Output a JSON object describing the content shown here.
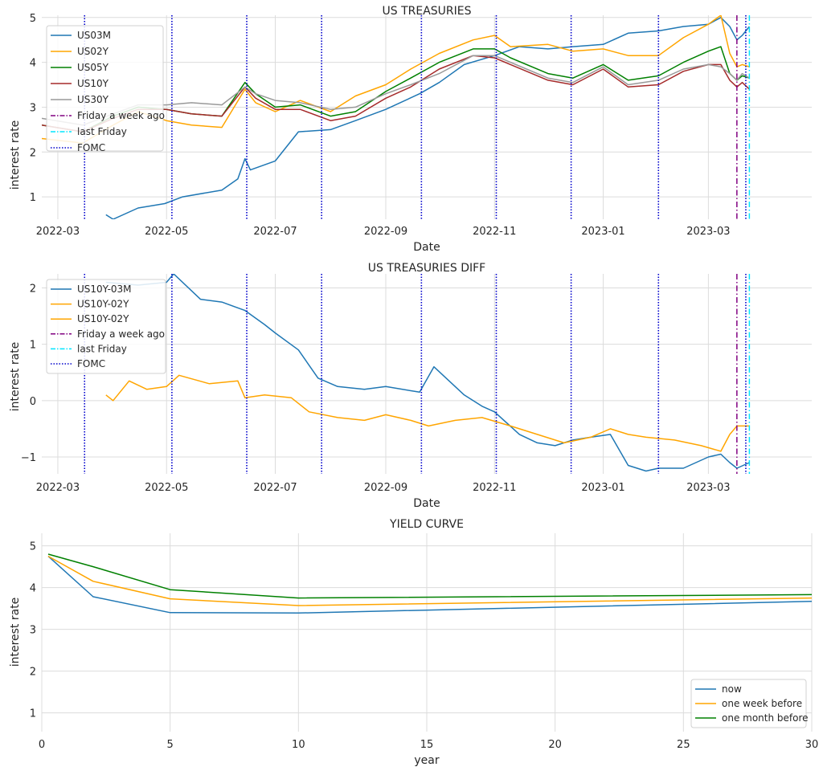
{
  "chart_data": [
    {
      "type": "line",
      "title": "US TREASURIES",
      "xlabel": "Date",
      "ylabel": "interest rate",
      "x_ticks": [
        "2022-03",
        "2022-05",
        "2022-07",
        "2022-09",
        "2022-11",
        "2023-01",
        "2023-03"
      ],
      "y_ticks": [
        "1",
        "2",
        "3",
        "4",
        "5"
      ],
      "x_range": [
        "2022-02-20",
        "2023-04-28"
      ],
      "ylim": [
        0.5,
        5.05
      ],
      "grid": true,
      "legend_position": "upper-left",
      "legend": [
        "US03M",
        "US02Y",
        "US05Y",
        "US10Y",
        "US30Y",
        "Friday a week ago",
        "last Friday",
        "FOMC"
      ],
      "vlines": {
        "FOMC": [
          "2022-03-16",
          "2022-05-04",
          "2022-06-15",
          "2022-07-27",
          "2022-09-21",
          "2022-11-02",
          "2022-12-14",
          "2023-02-01",
          "2023-03-22"
        ],
        "Friday a week ago": "2023-03-17",
        "last Friday": "2023-03-24"
      },
      "series": [
        {
          "name": "US03M",
          "color": "#1f77b4",
          "x": [
            "2022-03-28",
            "2022-04-01",
            "2022-04-15",
            "2022-04-30",
            "2022-05-10",
            "2022-06-01",
            "2022-06-10",
            "2022-06-14",
            "2022-06-17",
            "2022-07-01",
            "2022-07-14",
            "2022-08-01",
            "2022-08-15",
            "2022-09-01",
            "2022-09-20",
            "2022-10-01",
            "2022-10-15",
            "2022-11-01",
            "2022-11-15",
            "2022-12-01",
            "2022-12-15",
            "2023-01-01",
            "2023-01-15",
            "2023-02-01",
            "2023-02-15",
            "2023-03-01",
            "2023-03-08",
            "2023-03-13",
            "2023-03-17",
            "2023-03-20",
            "2023-03-24"
          ],
          "y": [
            0.6,
            0.5,
            0.75,
            0.85,
            1.0,
            1.15,
            1.4,
            1.85,
            1.6,
            1.8,
            2.45,
            2.5,
            2.7,
            2.95,
            3.3,
            3.55,
            3.95,
            4.15,
            4.35,
            4.3,
            4.35,
            4.4,
            4.65,
            4.7,
            4.8,
            4.85,
            5.0,
            4.8,
            4.5,
            4.6,
            4.8
          ]
        },
        {
          "name": "US02Y",
          "color": "#ffa500",
          "x": [
            "2022-02-20",
            "2022-03-15",
            "2022-04-01",
            "2022-04-15",
            "2022-05-01",
            "2022-05-15",
            "2022-06-01",
            "2022-06-14",
            "2022-06-20",
            "2022-07-01",
            "2022-07-15",
            "2022-08-01",
            "2022-08-15",
            "2022-09-01",
            "2022-09-15",
            "2022-10-01",
            "2022-10-20",
            "2022-11-01",
            "2022-11-10",
            "2022-12-01",
            "2022-12-15",
            "2023-01-01",
            "2023-01-15",
            "2023-02-01",
            "2023-02-15",
            "2023-03-01",
            "2023-03-08",
            "2023-03-13",
            "2023-03-17",
            "2023-03-20",
            "2023-03-24"
          ],
          "y": [
            2.3,
            2.2,
            2.6,
            2.9,
            2.7,
            2.6,
            2.55,
            3.4,
            3.1,
            2.9,
            3.15,
            2.9,
            3.25,
            3.5,
            3.85,
            4.2,
            4.5,
            4.6,
            4.35,
            4.4,
            4.25,
            4.3,
            4.15,
            4.15,
            4.55,
            4.85,
            5.05,
            4.2,
            3.9,
            3.95,
            3.9
          ]
        },
        {
          "name": "US05Y",
          "color": "#008000",
          "x": [
            "2022-02-20",
            "2022-03-15",
            "2022-04-01",
            "2022-04-15",
            "2022-05-01",
            "2022-05-15",
            "2022-06-01",
            "2022-06-14",
            "2022-06-20",
            "2022-07-01",
            "2022-07-15",
            "2022-08-01",
            "2022-08-15",
            "2022-09-01",
            "2022-09-15",
            "2022-10-01",
            "2022-10-20",
            "2022-11-01",
            "2022-11-10",
            "2022-12-01",
            "2022-12-15",
            "2023-01-01",
            "2023-01-15",
            "2023-02-01",
            "2023-02-15",
            "2023-03-01",
            "2023-03-08",
            "2023-03-13",
            "2023-03-17",
            "2023-03-20",
            "2023-03-24"
          ],
          "y": [
            2.6,
            2.45,
            2.8,
            3.0,
            2.95,
            2.85,
            2.8,
            3.55,
            3.3,
            3.0,
            3.05,
            2.8,
            2.9,
            3.35,
            3.65,
            4.0,
            4.3,
            4.3,
            4.1,
            3.75,
            3.65,
            3.95,
            3.6,
            3.7,
            4.0,
            4.25,
            4.35,
            3.75,
            3.6,
            3.7,
            3.65
          ]
        },
        {
          "name": "US10Y",
          "color": "#a52a2a",
          "x": [
            "2022-02-20",
            "2022-03-15",
            "2022-04-01",
            "2022-04-15",
            "2022-05-01",
            "2022-05-15",
            "2022-06-01",
            "2022-06-14",
            "2022-06-20",
            "2022-07-01",
            "2022-07-15",
            "2022-08-01",
            "2022-08-15",
            "2022-09-01",
            "2022-09-15",
            "2022-10-01",
            "2022-10-20",
            "2022-11-01",
            "2022-11-10",
            "2022-12-01",
            "2022-12-15",
            "2023-01-01",
            "2023-01-15",
            "2023-02-01",
            "2023-02-15",
            "2023-03-01",
            "2023-03-08",
            "2023-03-13",
            "2023-03-17",
            "2023-03-20",
            "2023-03-24"
          ],
          "y": [
            2.6,
            2.45,
            2.75,
            2.95,
            2.95,
            2.85,
            2.8,
            3.45,
            3.2,
            2.95,
            2.95,
            2.7,
            2.8,
            3.2,
            3.45,
            3.85,
            4.15,
            4.1,
            3.95,
            3.6,
            3.5,
            3.85,
            3.45,
            3.5,
            3.8,
            3.95,
            3.95,
            3.6,
            3.45,
            3.55,
            3.4
          ]
        },
        {
          "name": "US30Y",
          "color": "#999999",
          "x": [
            "2022-02-20",
            "2022-03-15",
            "2022-04-01",
            "2022-04-15",
            "2022-05-01",
            "2022-05-15",
            "2022-06-01",
            "2022-06-14",
            "2022-06-20",
            "2022-07-01",
            "2022-07-15",
            "2022-08-01",
            "2022-08-15",
            "2022-09-01",
            "2022-09-15",
            "2022-10-01",
            "2022-10-20",
            "2022-11-01",
            "2022-11-10",
            "2022-12-01",
            "2022-12-15",
            "2023-01-01",
            "2023-01-15",
            "2023-02-01",
            "2023-02-15",
            "2023-03-01",
            "2023-03-08",
            "2023-03-13",
            "2023-03-17",
            "2023-03-20",
            "2023-03-24"
          ],
          "y": [
            2.75,
            2.6,
            2.85,
            3.05,
            3.05,
            3.1,
            3.05,
            3.45,
            3.3,
            3.15,
            3.1,
            2.95,
            3.0,
            3.3,
            3.5,
            3.75,
            4.15,
            4.15,
            4.0,
            3.65,
            3.55,
            3.9,
            3.5,
            3.6,
            3.85,
            3.95,
            3.9,
            3.75,
            3.6,
            3.75,
            3.65
          ]
        }
      ]
    },
    {
      "type": "line",
      "title": "US TREASURIES DIFF",
      "xlabel": "Date",
      "ylabel": "interest rate",
      "x_ticks": [
        "2022-03",
        "2022-05",
        "2022-07",
        "2022-09",
        "2022-11",
        "2023-01",
        "2023-03"
      ],
      "y_ticks": [
        "2",
        "1",
        "0",
        "−1"
      ],
      "x_range": [
        "2022-02-20",
        "2023-04-28"
      ],
      "ylim": [
        -1.3,
        2.25
      ],
      "grid": true,
      "legend_position": "upper-left",
      "legend": [
        "US10Y-03M",
        "US10Y-02Y",
        "US10Y-02Y",
        "Friday a week ago",
        "last Friday",
        "FOMC"
      ],
      "vlines": {
        "FOMC": [
          "2022-03-16",
          "2022-05-04",
          "2022-06-15",
          "2022-07-27",
          "2022-09-21",
          "2022-11-02",
          "2022-12-14",
          "2023-02-01",
          "2023-03-22"
        ],
        "Friday a week ago": "2023-03-17",
        "last Friday": "2023-03-24"
      },
      "series": [
        {
          "name": "US10Y-03M",
          "color": "#1f77b4",
          "x": [
            "2022-03-28",
            "2022-04-15",
            "2022-05-01",
            "2022-05-05",
            "2022-05-20",
            "2022-06-01",
            "2022-06-14",
            "2022-06-25",
            "2022-07-01",
            "2022-07-14",
            "2022-07-25",
            "2022-08-05",
            "2022-08-20",
            "2022-09-01",
            "2022-09-20",
            "2022-09-28",
            "2022-10-15",
            "2022-10-25",
            "2022-11-01",
            "2022-11-15",
            "2022-11-25",
            "2022-12-05",
            "2022-12-15",
            "2022-12-25",
            "2023-01-05",
            "2023-01-15",
            "2023-01-25",
            "2023-02-01",
            "2023-02-15",
            "2023-03-01",
            "2023-03-08",
            "2023-03-13",
            "2023-03-17",
            "2023-03-24"
          ],
          "y": [
            2.1,
            2.05,
            2.1,
            2.25,
            1.8,
            1.75,
            1.6,
            1.35,
            1.2,
            0.9,
            0.4,
            0.25,
            0.2,
            0.25,
            0.15,
            0.6,
            0.1,
            -0.1,
            -0.2,
            -0.6,
            -0.75,
            -0.8,
            -0.7,
            -0.65,
            -0.6,
            -1.15,
            -1.25,
            -1.2,
            -1.2,
            -1.0,
            -0.95,
            -1.1,
            -1.2,
            -1.1
          ]
        },
        {
          "name": "US10Y-02Y",
          "color": "#ffa500",
          "x": [
            "2022-03-28",
            "2022-04-01",
            "2022-04-10",
            "2022-04-20",
            "2022-05-01",
            "2022-05-08",
            "2022-05-25",
            "2022-06-10",
            "2022-06-14",
            "2022-06-25",
            "2022-07-10",
            "2022-07-20",
            "2022-08-05",
            "2022-08-20",
            "2022-09-01",
            "2022-09-15",
            "2022-09-25",
            "2022-10-10",
            "2022-10-25",
            "2022-11-10",
            "2022-11-25",
            "2022-12-10",
            "2022-12-25",
            "2023-01-05",
            "2023-01-15",
            "2023-01-25",
            "2023-02-10",
            "2023-02-25",
            "2023-03-08",
            "2023-03-13",
            "2023-03-17",
            "2023-03-24"
          ],
          "y": [
            0.1,
            0.0,
            0.35,
            0.2,
            0.25,
            0.45,
            0.3,
            0.35,
            0.05,
            0.1,
            0.05,
            -0.2,
            -0.3,
            -0.35,
            -0.25,
            -0.35,
            -0.45,
            -0.35,
            -0.3,
            -0.45,
            -0.6,
            -0.75,
            -0.65,
            -0.5,
            -0.6,
            -0.65,
            -0.7,
            -0.8,
            -0.9,
            -0.6,
            -0.45,
            -0.45
          ]
        }
      ]
    },
    {
      "type": "line",
      "title": "YIELD CURVE",
      "xlabel": "year",
      "ylabel": "interest rate",
      "x_ticks": [
        "0",
        "5",
        "10",
        "15",
        "20",
        "25",
        "30"
      ],
      "y_ticks": [
        "1",
        "2",
        "3",
        "4",
        "5"
      ],
      "xlim": [
        0,
        30
      ],
      "ylim": [
        0.55,
        5.3
      ],
      "grid": true,
      "legend_position": "lower-right",
      "legend": [
        "now",
        "one week before",
        "one month before"
      ],
      "series": [
        {
          "name": "now",
          "color": "#1f77b4",
          "x": [
            0.25,
            2,
            5,
            10,
            30
          ],
          "y": [
            4.75,
            3.78,
            3.4,
            3.39,
            3.67
          ]
        },
        {
          "name": "one week before",
          "color": "#ffa500",
          "x": [
            0.25,
            2,
            5,
            10,
            30
          ],
          "y": [
            4.75,
            4.15,
            3.73,
            3.57,
            3.75
          ]
        },
        {
          "name": "one month before",
          "color": "#008000",
          "x": [
            0.25,
            2,
            5,
            10,
            30
          ],
          "y": [
            4.8,
            4.5,
            3.95,
            3.75,
            3.83
          ]
        }
      ]
    }
  ]
}
